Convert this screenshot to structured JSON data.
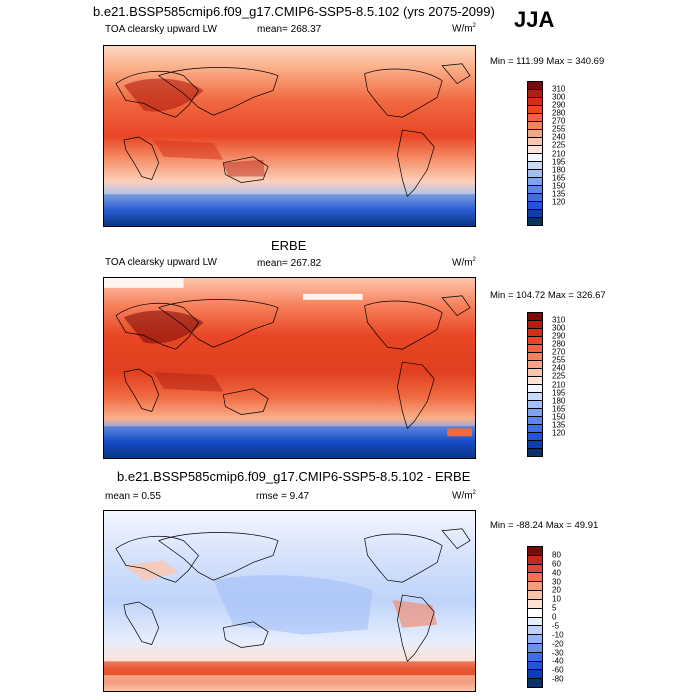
{
  "season": "JJA",
  "colors": {
    "main": [
      "#08306b",
      "#0a3fb0",
      "#1f55d6",
      "#3e6ee6",
      "#5c87ee",
      "#7ea3f3",
      "#a3bff7",
      "#c8d9fa",
      "#f3f6ff",
      "#fde4d6",
      "#fcc6ae",
      "#fba483",
      "#f7825d",
      "#f2623d",
      "#e84625",
      "#d32f17",
      "#b41d0f",
      "#7a0a05"
    ],
    "diff": [
      "#08306b",
      "#0a3fb0",
      "#1f55d6",
      "#3e6ee6",
      "#6a92ef",
      "#94b3f5",
      "#bfd3fa",
      "#e6eefe",
      "#ffffff",
      "#fde2d4",
      "#fbc1a6",
      "#f79c78",
      "#f0744c",
      "#e24a26",
      "#c42a14",
      "#7a0a05"
    ]
  },
  "panels": [
    {
      "title": "b.e21.BSSP585cmip6.f09_g17.CMIP6-SSP5-8.5.102 (yrs 2075-2099)",
      "left_label": "TOA clearsky upward LW",
      "mean": "mean= 268.37",
      "units": "W/m",
      "units_exp": "2",
      "minmax": "Min = 111.99 Max = 340.69",
      "levels": [
        "310",
        "300",
        "290",
        "280",
        "270",
        "255",
        "240",
        "225",
        "210",
        "195",
        "180",
        "165",
        "150",
        "135",
        "120"
      ]
    },
    {
      "title": "ERBE",
      "left_label": "TOA clearsky upward LW",
      "mean": "mean= 267.82",
      "units": "W/m",
      "units_exp": "2",
      "minmax": "Min = 104.72 Max = 326.67",
      "levels": [
        "310",
        "300",
        "290",
        "280",
        "270",
        "255",
        "240",
        "225",
        "210",
        "195",
        "180",
        "165",
        "150",
        "135",
        "120"
      ]
    },
    {
      "title": "b.e21.BSSP585cmip6.f09_g17.CMIP6-SSP5-8.5.102 - ERBE",
      "left_label": "mean =   0.55",
      "mean": "rmse =   9.47",
      "units": "W/m",
      "units_exp": "2",
      "minmax": "Min = -88.24 Max =  49.91",
      "levels": [
        "80",
        "60",
        "40",
        "30",
        "20",
        "10",
        "5",
        "0",
        "-5",
        "-10",
        "-20",
        "-30",
        "-40",
        "-60",
        "-80"
      ]
    }
  ]
}
